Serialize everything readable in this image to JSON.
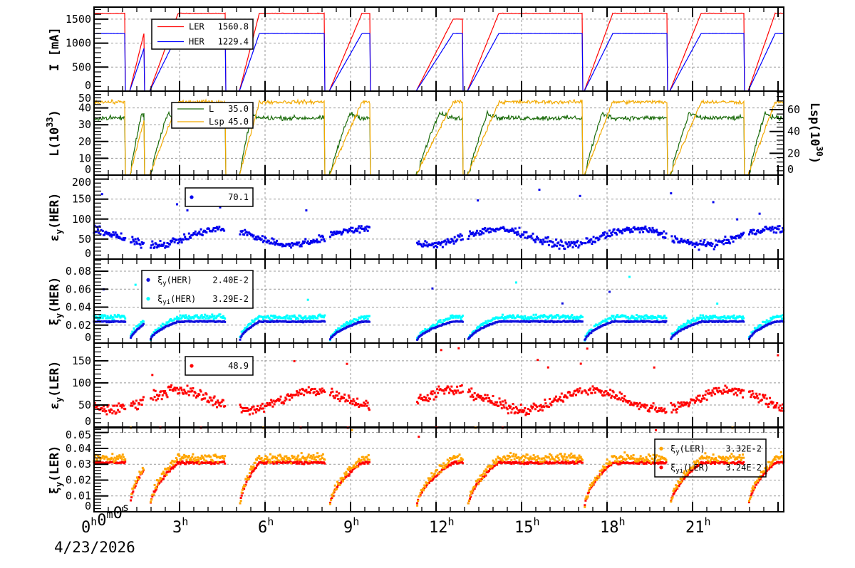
{
  "chart_data": {
    "type": "line",
    "x_axis": {
      "unit": "hours",
      "range": [
        0,
        24.2
      ],
      "ticks": [
        0,
        3,
        6,
        9,
        12,
        15,
        18,
        21
      ],
      "tick_labels": [
        "3",
        "6",
        "9",
        "12",
        "15",
        "18",
        "21"
      ],
      "origin_label": {
        "h": "0",
        "m": "0",
        "s": "0"
      },
      "date": "4/23/2026",
      "grid": true
    },
    "beam_events_hours": [
      {
        "off": 1.1,
        "on": 1.25,
        "full": 1.75,
        "cap": 0.74
      },
      {
        "off": 1.75,
        "on": 1.95,
        "full": 2.95,
        "cap": 1
      },
      {
        "off": 4.6,
        "on": 5.1,
        "full": 5.8,
        "cap": 1
      },
      {
        "off": 8.1,
        "on": 8.25,
        "full": 9.4,
        "cap": 1
      },
      {
        "off": 9.68,
        "on": 11.3,
        "full": 12.6,
        "cap": 1
      },
      {
        "off": 12.95,
        "on": 13.1,
        "full": 14.2,
        "cap": 1
      },
      {
        "off": 17.15,
        "on": 17.2,
        "full": 18.2,
        "cap": 1
      },
      {
        "off": 20.1,
        "on": 20.2,
        "full": 21.3,
        "cap": 1
      },
      {
        "off": 22.8,
        "on": 22.95,
        "full": 23.9,
        "cap": 1
      }
    ],
    "panels": [
      {
        "id": "current",
        "ylabel": "I [mA]",
        "ylim": [
          0,
          1750
        ],
        "yticks": [
          0,
          500,
          1000,
          1500
        ],
        "series": [
          {
            "name": "LER",
            "kind": "line",
            "color": "#ff0000",
            "level": 1620,
            "noise": 5,
            "legend_value": "1560.8"
          },
          {
            "name": "HER",
            "kind": "line",
            "color": "#0000ff",
            "level": 1200,
            "noise": 3,
            "legend_value": "1229.4"
          }
        ],
        "legend": "top-left"
      },
      {
        "id": "luminosity",
        "ylabel": "L(10",
        "ylabel_sup": "33",
        "ylabel_end": ")",
        "ylim": [
          0,
          50
        ],
        "yticks": [
          0,
          10,
          20,
          30,
          40,
          50
        ],
        "right_axis": {
          "label": "Lsp(10",
          "label_sup": "30",
          "label_end": ")",
          "ylim": [
            0,
            77
          ],
          "yticks": [
            0,
            20,
            40,
            60
          ]
        },
        "series": [
          {
            "name": "L",
            "kind": "line",
            "color": "#1a6b0a",
            "level": 34,
            "noise": 1.2,
            "axis": "left",
            "legend_value": "35.0"
          },
          {
            "name": "Lsp",
            "kind": "line",
            "color": "#f2a900",
            "level": 67,
            "noise": 1.5,
            "axis": "right",
            "legend_value": "45.0"
          }
        ],
        "legend": "top-left"
      },
      {
        "id": "emit-her",
        "ylabel": "ε",
        "ylabel_sub": "y",
        "ylabel_end": "(HER)",
        "ylim": [
          0,
          210
        ],
        "yticks": [
          0,
          50,
          100,
          150,
          200
        ],
        "series": [
          {
            "name": "",
            "kind": "scatter",
            "color": "#0000ee",
            "level": 65,
            "noise": 8,
            "legend_value": "70.1"
          }
        ],
        "legend": "top-left"
      },
      {
        "id": "xi-her",
        "ylabel": "ξ",
        "ylabel_sub": "y",
        "ylabel_end": "(HER)",
        "ylim": [
          0,
          0.0935
        ],
        "yticks": [
          0,
          0.02,
          0.04,
          0.06,
          0.08
        ],
        "series": [
          {
            "name": "ξ",
            "sub": "y",
            "name_end": "(HER)",
            "kind": "scatter",
            "color": "#00ffff",
            "level": 0.029,
            "noise": 0.0022,
            "legend_value": "3.29E-2",
            "legend_sub": "yi"
          },
          {
            "name": "ξ",
            "sub": "y",
            "name_end": "(HER)",
            "kind": "scatter",
            "color": "#1010dd",
            "level": 0.024,
            "noise": 0.0006,
            "legend_value": "2.40E-2",
            "legend_sub": "y"
          }
        ],
        "legend": "top-left"
      },
      {
        "id": "emit-ler",
        "ylabel": "ε",
        "ylabel_sub": "y",
        "ylabel_end": "(LER)",
        "ylim": [
          0,
          190
        ],
        "yticks": [
          0,
          50,
          100,
          150
        ],
        "series": [
          {
            "name": "",
            "kind": "scatter",
            "color": "#ff0000",
            "level": 72,
            "noise": 10,
            "legend_value": "48.9"
          }
        ],
        "legend": "top-left"
      },
      {
        "id": "xi-ler",
        "ylabel": "ξ",
        "ylabel_sub": "y",
        "ylabel_end": "(LER)",
        "ylim": [
          0,
          0.053
        ],
        "yticks": [
          0,
          0.01,
          0.02,
          0.03,
          0.04,
          0.05
        ],
        "series": [
          {
            "name": "ξ",
            "sub": "yi",
            "name_end": "(LER)",
            "kind": "scatter",
            "color": "#ff0000",
            "level": 0.031,
            "noise": 0.0007,
            "legend_value": "3.24E-2",
            "legend_sub": "yi"
          },
          {
            "name": "ξ",
            "sub": "y",
            "name_end": "(LER)",
            "kind": "scatter",
            "color": "#ffa500",
            "level": 0.034,
            "noise": 0.0022,
            "legend_value": "3.32E-2",
            "legend_sub": "y"
          }
        ],
        "legend": "top-right"
      }
    ]
  }
}
